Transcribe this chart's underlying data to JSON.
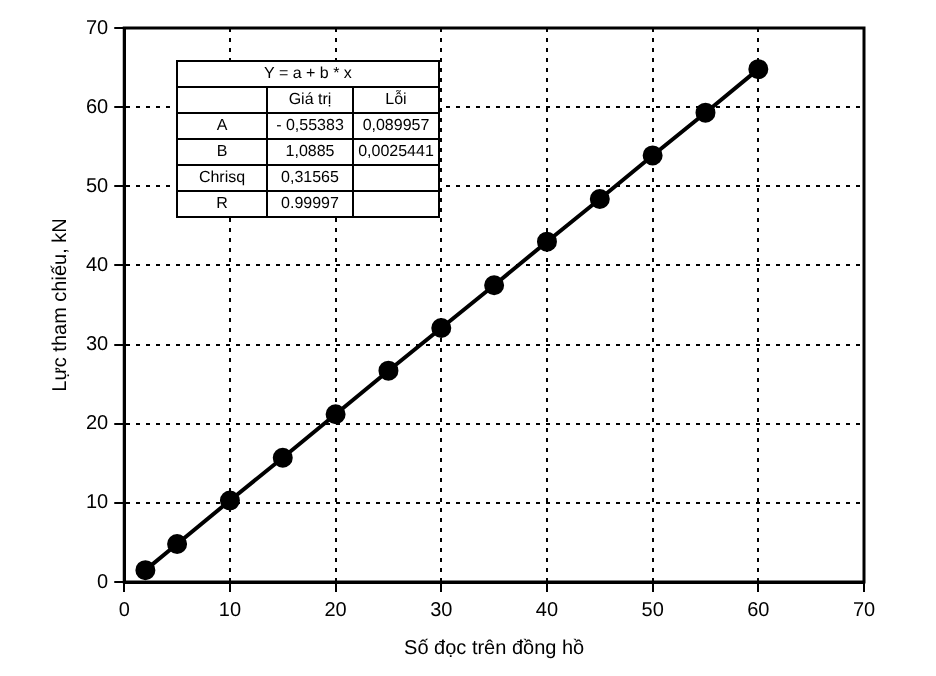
{
  "chart_data": {
    "type": "line",
    "xlabel": "Số đọc trên đồng hồ",
    "ylabel": "Lực tham chiếu, kN",
    "x": [
      2,
      5,
      10,
      15,
      20,
      25,
      30,
      35,
      40,
      45,
      50,
      55,
      60
    ],
    "series": [
      {
        "color": "#000000",
        "values": [
          1.5,
          4.8,
          10.3,
          15.7,
          21.2,
          26.7,
          32.1,
          37.5,
          43,
          48.4,
          53.9,
          59.3,
          64.8
        ]
      }
    ],
    "xlim": [
      0,
      70
    ],
    "xticks": [
      0,
      10,
      20,
      30,
      40,
      50,
      60,
      70
    ],
    "ylim": [
      0,
      70
    ],
    "yticks": [
      0,
      10,
      20,
      30,
      40,
      50,
      60,
      70
    ],
    "grid": true,
    "marker": "circle",
    "line_style": "solid",
    "legend": false,
    "annotations": [
      "Y = a + b * x",
      "Giá trị",
      "Lỗi",
      "A",
      "- 0,55383",
      "0,089957",
      "B",
      "1,0885",
      "0,0025441",
      "Chrisq",
      "0,31565",
      "R",
      "0.99997"
    ]
  }
}
